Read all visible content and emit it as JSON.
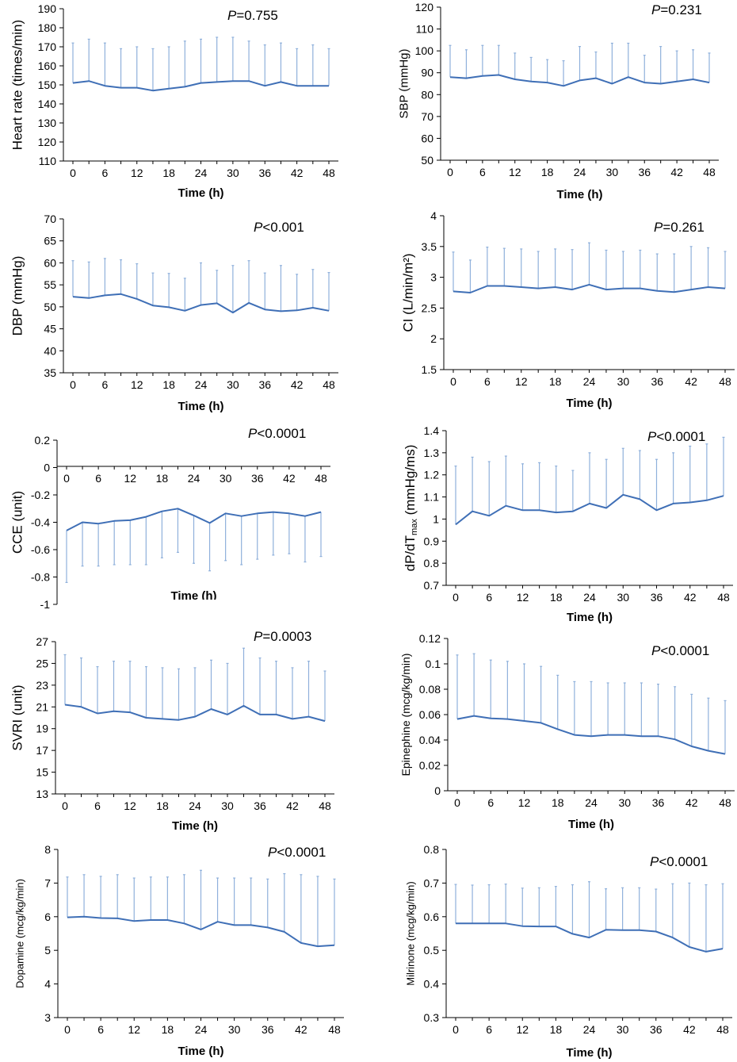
{
  "chart_data": [
    {
      "type": "line",
      "ylabel": "Heart rate (times/min)",
      "xlabel": "Time (h)",
      "annotation": {
        "letter": "P",
        "rest": "=0.755"
      },
      "ylim": [
        110,
        190
      ],
      "ystep": 10,
      "zero_axis": false,
      "x": [
        0,
        3,
        6,
        9,
        12,
        15,
        18,
        21,
        24,
        27,
        30,
        33,
        36,
        39,
        42,
        45,
        48
      ],
      "xticks": [
        0,
        6,
        12,
        18,
        24,
        30,
        36,
        42,
        48
      ],
      "series": [
        {
          "name": "Mean",
          "values": [
            151,
            152,
            149.5,
            148.5,
            148.5,
            147,
            148,
            149,
            151,
            151.5,
            152,
            152,
            149.5,
            151.5,
            149.5,
            149.5,
            149.5
          ]
        }
      ],
      "error_upper": [
        172,
        174,
        172,
        169,
        170,
        169,
        170,
        173,
        174,
        175,
        175,
        173,
        171,
        172,
        169,
        171,
        169
      ],
      "error_dir": "up"
    },
    {
      "type": "line",
      "ylabel": "SBP (mmHg)",
      "xlabel": "Time (h)",
      "annotation": {
        "letter": "P",
        "rest": "=0.231"
      },
      "ylim": [
        50,
        120
      ],
      "ystep": 10,
      "zero_axis": false,
      "x": [
        0,
        3,
        6,
        9,
        12,
        15,
        18,
        21,
        24,
        27,
        30,
        33,
        36,
        39,
        42,
        45,
        48
      ],
      "xticks": [
        0,
        6,
        12,
        18,
        24,
        30,
        36,
        42,
        48
      ],
      "series": [
        {
          "name": "Mean",
          "values": [
            88,
            87.5,
            88.5,
            89,
            87,
            86,
            85.5,
            84,
            86.5,
            87.5,
            85,
            88,
            85.5,
            85,
            86,
            87,
            85.5
          ]
        }
      ],
      "error_upper": [
        102.5,
        100.5,
        102.5,
        102.5,
        99,
        97,
        96,
        95.5,
        102,
        99.5,
        103.5,
        103.5,
        98,
        102,
        100,
        100.5,
        99
      ],
      "error_dir": "up"
    },
    {
      "type": "line",
      "ylabel": "DBP (mmHg)",
      "xlabel": "Time (h)",
      "annotation": {
        "letter": "P",
        "rest": "<0.001"
      },
      "ylim": [
        35,
        70
      ],
      "ystep": 5,
      "zero_axis": false,
      "x": [
        0,
        3,
        6,
        9,
        12,
        15,
        18,
        21,
        24,
        27,
        30,
        33,
        36,
        39,
        42,
        45,
        48
      ],
      "xticks": [
        0,
        6,
        12,
        18,
        24,
        30,
        36,
        42,
        48
      ],
      "series": [
        {
          "name": "Mean",
          "values": [
            52.3,
            52,
            52.6,
            52.9,
            51.8,
            50.3,
            49.9,
            49.1,
            50.4,
            50.8,
            48.7,
            50.9,
            49.4,
            49,
            49.2,
            49.8,
            49.1
          ]
        }
      ],
      "error_upper": [
        60.5,
        60.2,
        61,
        60.7,
        59.8,
        57.7,
        57.6,
        56.5,
        60,
        58.3,
        59.4,
        60.5,
        57.7,
        59.4,
        57.4,
        58.5,
        57.8
      ],
      "error_dir": "up"
    },
    {
      "type": "line",
      "ylabel": "CI (L/min/m²)",
      "xlabel": "Time (h)",
      "annotation": {
        "letter": "P",
        "rest": "=0.261"
      },
      "ylim": [
        1.5,
        4
      ],
      "ystep": 0.5,
      "zero_axis": false,
      "x": [
        0,
        3,
        6,
        9,
        12,
        15,
        18,
        21,
        24,
        27,
        30,
        33,
        36,
        39,
        42,
        45,
        48
      ],
      "xticks": [
        0,
        6,
        12,
        18,
        24,
        30,
        36,
        42,
        48
      ],
      "series": [
        {
          "name": "Mean",
          "values": [
            2.77,
            2.75,
            2.86,
            2.86,
            2.84,
            2.82,
            2.84,
            2.8,
            2.88,
            2.8,
            2.82,
            2.82,
            2.78,
            2.76,
            2.8,
            2.84,
            2.82
          ]
        }
      ],
      "error_upper": [
        3.41,
        3.28,
        3.49,
        3.47,
        3.46,
        3.42,
        3.46,
        3.45,
        3.56,
        3.44,
        3.42,
        3.44,
        3.38,
        3.38,
        3.5,
        3.48,
        3.42
      ],
      "error_dir": "up"
    },
    {
      "type": "line",
      "ylabel": "CCE (unit)",
      "xlabel": "Time (h)",
      "annotation": {
        "letter": "P",
        "rest": "<0.0001"
      },
      "ylim": [
        -1,
        0.2
      ],
      "ystep": 0.2,
      "zero_axis": true,
      "x": [
        0,
        3,
        6,
        9,
        12,
        15,
        18,
        21,
        24,
        27,
        30,
        33,
        36,
        39,
        42,
        45,
        48
      ],
      "xticks": [
        0,
        6,
        12,
        18,
        24,
        30,
        36,
        42,
        48
      ],
      "series": [
        {
          "name": "Mean",
          "values": [
            -0.46,
            -0.4,
            -0.41,
            -0.39,
            -0.385,
            -0.36,
            -0.32,
            -0.3,
            -0.35,
            -0.405,
            -0.335,
            -0.355,
            -0.335,
            -0.325,
            -0.335,
            -0.355,
            -0.325
          ]
        }
      ],
      "error_lower": [
        -0.84,
        -0.72,
        -0.72,
        -0.71,
        -0.71,
        -0.71,
        -0.66,
        -0.62,
        -0.7,
        -0.755,
        -0.68,
        -0.71,
        -0.67,
        -0.64,
        -0.63,
        -0.69,
        -0.65
      ],
      "error_dir": "down"
    },
    {
      "type": "line",
      "ylabel": "dP/dT",
      "ylabel_sub": "max",
      "ylabel_tail": " (mmHg/ms)",
      "xlabel": "Time (h)",
      "annotation": {
        "letter": "P",
        "rest": "<0.0001"
      },
      "ylim": [
        0.7,
        1.4
      ],
      "ystep": 0.1,
      "zero_axis": false,
      "x": [
        0,
        3,
        6,
        9,
        12,
        15,
        18,
        21,
        24,
        27,
        30,
        33,
        36,
        39,
        42,
        45,
        48
      ],
      "xticks": [
        0,
        6,
        12,
        18,
        24,
        30,
        36,
        42,
        48
      ],
      "series": [
        {
          "name": "Mean",
          "values": [
            0.975,
            1.035,
            1.015,
            1.06,
            1.04,
            1.04,
            1.03,
            1.035,
            1.07,
            1.05,
            1.11,
            1.09,
            1.04,
            1.07,
            1.075,
            1.085,
            1.105
          ]
        }
      ],
      "error_upper": [
        1.24,
        1.28,
        1.26,
        1.285,
        1.25,
        1.255,
        1.24,
        1.22,
        1.3,
        1.27,
        1.32,
        1.31,
        1.27,
        1.3,
        1.33,
        1.34,
        1.37
      ],
      "error_dir": "up"
    },
    {
      "type": "line",
      "ylabel": "SVRI (unit)",
      "xlabel": "Time (h)",
      "annotation": {
        "letter": "P",
        "rest": "=0.0003"
      },
      "ylim": [
        13,
        27
      ],
      "ystep": 2,
      "zero_axis": false,
      "x": [
        0,
        3,
        6,
        9,
        12,
        15,
        18,
        21,
        24,
        27,
        30,
        33,
        36,
        39,
        42,
        45,
        48
      ],
      "xticks": [
        0,
        6,
        12,
        18,
        24,
        30,
        36,
        42,
        48
      ],
      "series": [
        {
          "name": "Mean",
          "values": [
            21.2,
            21,
            20.4,
            20.6,
            20.5,
            20,
            19.9,
            19.8,
            20.1,
            20.8,
            20.3,
            21.1,
            20.3,
            20.3,
            19.9,
            20.1,
            19.7
          ]
        }
      ],
      "error_upper": [
        25.8,
        25.5,
        24.7,
        25.2,
        25.2,
        24.7,
        24.6,
        24.5,
        24.6,
        25.3,
        25,
        26.4,
        25.5,
        25.2,
        24.6,
        25.2,
        24.3
      ],
      "error_dir": "up"
    },
    {
      "type": "line",
      "ylabel": "Epinephine (mcg/kg/min)",
      "xlabel": "Time (h)",
      "annotation": {
        "letter": "P",
        "rest": "<0.0001"
      },
      "ylim": [
        0,
        0.12
      ],
      "ystep": 0.02,
      "zero_axis": false,
      "x": [
        0,
        3,
        6,
        9,
        12,
        15,
        18,
        21,
        24,
        27,
        30,
        33,
        36,
        39,
        42,
        45,
        48
      ],
      "xticks": [
        0,
        6,
        12,
        18,
        24,
        30,
        36,
        42,
        48
      ],
      "series": [
        {
          "name": "Mean",
          "values": [
            0.0565,
            0.059,
            0.057,
            0.0565,
            0.055,
            0.0535,
            0.0485,
            0.044,
            0.043,
            0.044,
            0.044,
            0.043,
            0.043,
            0.0405,
            0.035,
            0.0315,
            0.029
          ]
        }
      ],
      "error_upper": [
        0.107,
        0.108,
        0.103,
        0.102,
        0.1,
        0.098,
        0.091,
        0.086,
        0.086,
        0.085,
        0.085,
        0.085,
        0.084,
        0.082,
        0.076,
        0.073,
        0.071
      ],
      "error_dir": "up"
    },
    {
      "type": "line",
      "ylabel": "Dopamine (mcg/kg/min)",
      "xlabel": "Time (h)",
      "annotation": {
        "letter": "P",
        "rest": "<0.0001"
      },
      "ylim": [
        3,
        8
      ],
      "ystep": 1,
      "zero_axis": false,
      "x": [
        0,
        3,
        6,
        9,
        12,
        15,
        18,
        21,
        24,
        27,
        30,
        33,
        36,
        39,
        42,
        45,
        48
      ],
      "xticks": [
        0,
        6,
        12,
        18,
        24,
        30,
        36,
        42,
        48
      ],
      "series": [
        {
          "name": "Mean",
          "values": [
            5.98,
            6,
            5.96,
            5.95,
            5.87,
            5.9,
            5.9,
            5.8,
            5.62,
            5.85,
            5.75,
            5.75,
            5.68,
            5.55,
            5.22,
            5.12,
            5.15
          ]
        }
      ],
      "error_upper": [
        7.18,
        7.25,
        7.2,
        7.25,
        7.15,
        7.18,
        7.18,
        7.25,
        7.38,
        7.15,
        7.15,
        7.15,
        7.12,
        7.28,
        7.25,
        7.2,
        7.12
      ],
      "error_dir": "up"
    },
    {
      "type": "line",
      "ylabel": "Milrinone (mcg/kg/min)",
      "xlabel": "Time (h)",
      "annotation": {
        "letter": "P",
        "rest": "<0.0001"
      },
      "ylim": [
        0.3,
        0.8
      ],
      "ystep": 0.1,
      "zero_axis": false,
      "x": [
        0,
        3,
        6,
        9,
        12,
        15,
        18,
        21,
        24,
        27,
        30,
        33,
        36,
        39,
        42,
        45,
        48
      ],
      "xticks": [
        0,
        6,
        12,
        18,
        24,
        30,
        36,
        42,
        48
      ],
      "series": [
        {
          "name": "Mean",
          "values": [
            0.58,
            0.58,
            0.58,
            0.58,
            0.572,
            0.571,
            0.571,
            0.549,
            0.538,
            0.561,
            0.56,
            0.56,
            0.556,
            0.538,
            0.51,
            0.496,
            0.505
          ]
        }
      ],
      "error_upper": [
        0.696,
        0.694,
        0.695,
        0.697,
        0.685,
        0.686,
        0.69,
        0.695,
        0.704,
        0.683,
        0.686,
        0.686,
        0.682,
        0.698,
        0.7,
        0.695,
        0.698
      ],
      "error_dir": "up"
    }
  ]
}
